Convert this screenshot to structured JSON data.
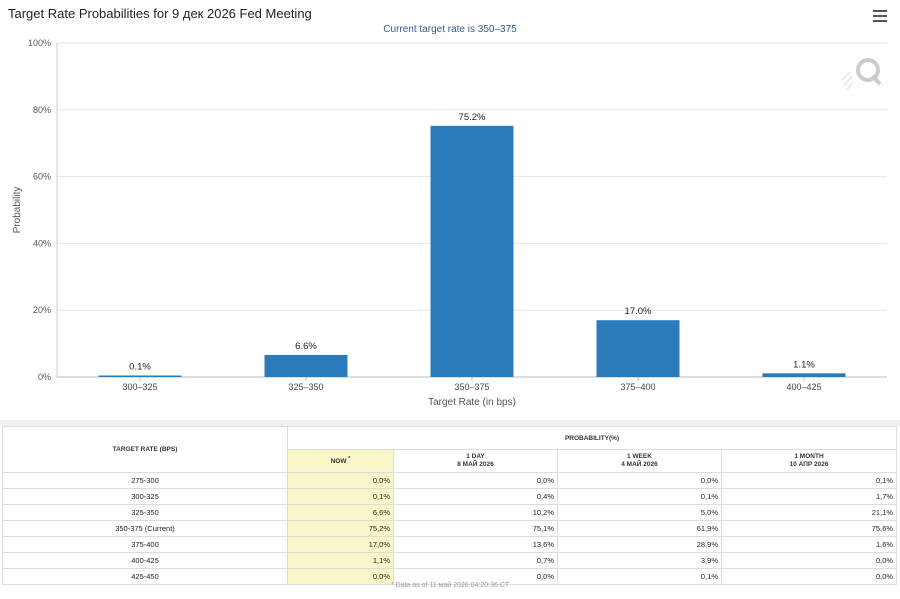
{
  "title": "Target Rate Probabilities for 9 дек 2026 Fed Meeting",
  "subtitle": "Current target rate is 350–375",
  "colors": {
    "bar": "#2b7bba",
    "now_column": "#f9f6c8",
    "grid": "#e6e6e6"
  },
  "chart_data": {
    "type": "bar",
    "categories": [
      "300–325",
      "325–350",
      "350–375",
      "375–400",
      "400–425"
    ],
    "values": [
      0.1,
      6.6,
      75.2,
      17.0,
      1.1
    ],
    "value_labels": [
      "0.1%",
      "6.6%",
      "75.2%",
      "17.0%",
      "1.1%"
    ],
    "xlabel": "Target Rate (in bps)",
    "ylabel": "Probability",
    "ylim": [
      0,
      100
    ],
    "yticks": [
      0,
      20,
      40,
      60,
      80,
      100
    ],
    "ytick_labels": [
      "0%",
      "20%",
      "40%",
      "60%",
      "80%",
      "100%"
    ],
    "grid": true,
    "legend": "none"
  },
  "table": {
    "col_rate_header": "TARGET RATE (BPS)",
    "prob_header": "PROBABILITY(%)",
    "now_header": "NOW",
    "now_marker": "*",
    "col1_line1": "1 DAY",
    "col1_line2": "8 МАЙ 2026",
    "col2_line1": "1 WEEK",
    "col2_line2": "4 МАЙ 2026",
    "col3_line1": "1 MONTH",
    "col3_line2": "10 АПР 2026",
    "rows": [
      {
        "rate": "275-300",
        "now": "0,0%",
        "day": "0,0%",
        "week": "0,0%",
        "month": "0,1%"
      },
      {
        "rate": "300-325",
        "now": "0,1%",
        "day": "0,4%",
        "week": "0,1%",
        "month": "1,7%"
      },
      {
        "rate": "325-350",
        "now": "6,6%",
        "day": "10,2%",
        "week": "5,0%",
        "month": "21,1%"
      },
      {
        "rate": "350-375 (Current)",
        "now": "75,2%",
        "day": "75,1%",
        "week": "61,9%",
        "month": "75,6%"
      },
      {
        "rate": "375-400",
        "now": "17,0%",
        "day": "13,6%",
        "week": "28,9%",
        "month": "1,6%"
      },
      {
        "rate": "400-425",
        "now": "1,1%",
        "day": "0,7%",
        "week": "3,9%",
        "month": "0,0%"
      },
      {
        "rate": "425-450",
        "now": "0,0%",
        "day": "0,0%",
        "week": "0,1%",
        "month": "0,0%"
      }
    ],
    "footnote": "* Data as of 11 май 2026 04:20:36 CT"
  }
}
